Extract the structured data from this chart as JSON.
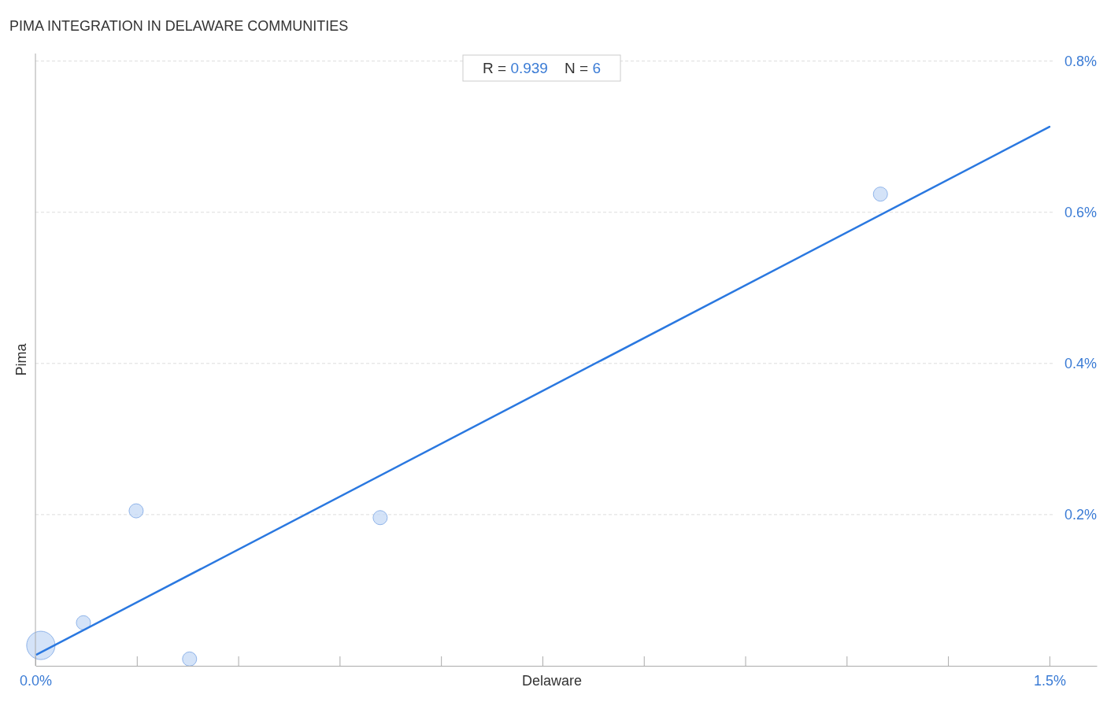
{
  "chart_data": {
    "type": "bubble",
    "title": "PIMA INTEGRATION IN DELAWARE COMMUNITIES",
    "xlabel": "Delaware",
    "ylabel": "Pima",
    "annotations": [
      "R = 0.939    N = 6"
    ],
    "xlim": [
      0,
      1.57
    ],
    "ylim": [
      0,
      0.81
    ],
    "xticks": [
      {
        "value": 0,
        "label": "0.0%"
      },
      {
        "value": 0.15,
        "label": null
      },
      {
        "value": 0.3,
        "label": null
      },
      {
        "value": 0.45,
        "label": null
      },
      {
        "value": 0.6,
        "label": null
      },
      {
        "value": 0.75,
        "label": null
      },
      {
        "value": 0.9,
        "label": null
      },
      {
        "value": 1.05,
        "label": null
      },
      {
        "value": 1.2,
        "label": null
      },
      {
        "value": 1.35,
        "label": null
      },
      {
        "value": 1.5,
        "label": "1.5%"
      }
    ],
    "yticks": [
      {
        "value": 0.2,
        "label": "0.2%"
      },
      {
        "value": 0.4,
        "label": "0.4%"
      },
      {
        "value": 0.6,
        "label": "0.6%"
      },
      {
        "value": 0.8,
        "label": "0.8%"
      }
    ],
    "grid": "y",
    "series": [
      {
        "color": "#c6daf6",
        "x": [
          0.008,
          0.071,
          0.149,
          0.228,
          0.51,
          1.25
        ],
        "values": [
          0.027,
          0.057,
          0.205,
          0.009,
          0.196,
          0.624
        ],
        "sizes": [
          1,
          0.25,
          0.25,
          0.25,
          0.25,
          0.25
        ]
      },
      {
        "type": "line",
        "color": "#2a78e0",
        "x": [
          0.002,
          1.5
        ],
        "values": [
          0.015,
          0.713
        ]
      }
    ]
  }
}
